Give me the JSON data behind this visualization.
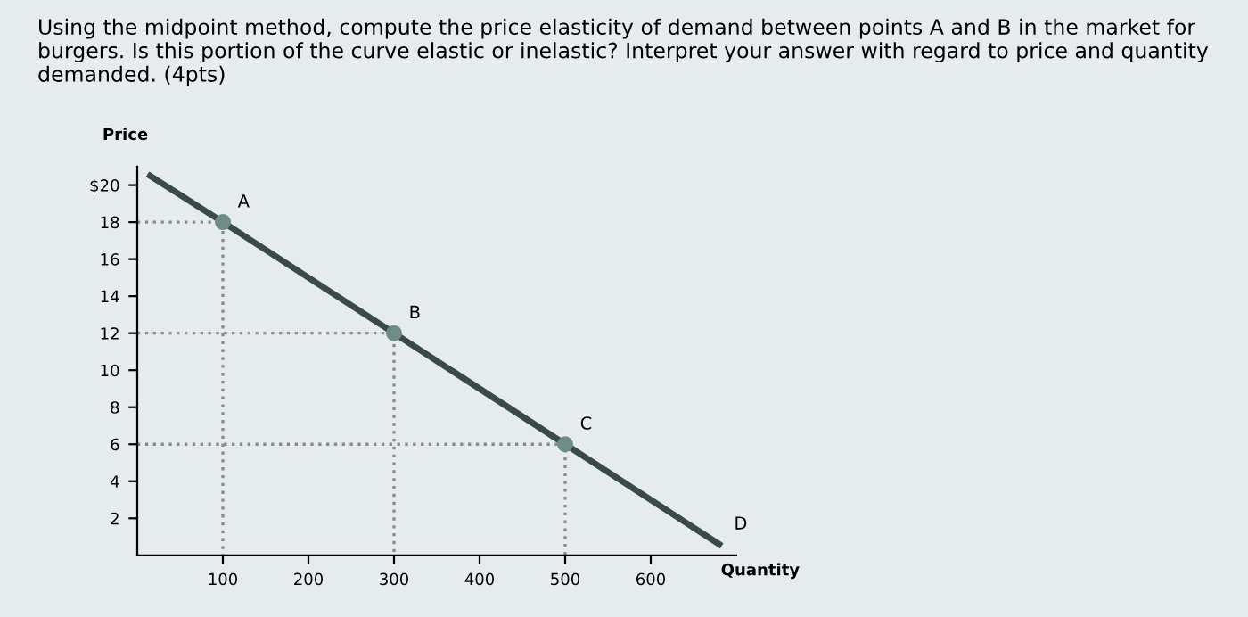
{
  "chart_data": {
    "type": "line",
    "title": "Using the midpoint method, compute the price elasticity of demand between points A and B in the market for burgers. Is this portion of the curve elastic or inelastic? Interpret your answer with regard to price and quantity demanded. (4pts)",
    "xlabel": "Quantity",
    "ylabel": "Price",
    "series": [
      {
        "color": "#3a4a48",
        "x": [
          15,
          100,
          300,
          500,
          680
        ],
        "values": [
          20.5,
          18,
          12,
          6,
          0.6
        ],
        "marker": "none",
        "line_style": "solid"
      },
      {
        "type": "scatter",
        "color": "#6f8c88",
        "x": [
          100,
          300,
          500
        ],
        "values": [
          18,
          12,
          6
        ],
        "marker": "circle"
      },
      {
        "color": "#8a8a8a",
        "x": [
          0,
          100,
          100
        ],
        "values": [
          18,
          18,
          0
        ],
        "marker": "none",
        "line_style": "dotted"
      },
      {
        "color": "#8a8a8a",
        "x": [
          0,
          300,
          300
        ],
        "values": [
          12,
          12,
          0
        ],
        "marker": "none",
        "line_style": "dotted"
      },
      {
        "color": "#8a8a8a",
        "x": [
          0,
          500,
          500
        ],
        "values": [
          6,
          6,
          0
        ],
        "marker": "none",
        "line_style": "dotted"
      }
    ],
    "annotations": [
      {
        "text": "A",
        "x": 100,
        "y": 18
      },
      {
        "text": "B",
        "x": 300,
        "y": 12
      },
      {
        "text": "C",
        "x": 500,
        "y": 6
      },
      {
        "text": "D",
        "x": 680,
        "y": 0.6
      }
    ],
    "xlim": [
      0,
      700
    ],
    "ylim": [
      0,
      21
    ],
    "xticks": [
      100,
      200,
      300,
      400,
      500,
      600
    ],
    "yticks": [
      {
        "value": 2,
        "label": "2"
      },
      {
        "value": 4,
        "label": "4"
      },
      {
        "value": 6,
        "label": "6"
      },
      {
        "value": 8,
        "label": "8"
      },
      {
        "value": 10,
        "label": "10"
      },
      {
        "value": 12,
        "label": "12"
      },
      {
        "value": 14,
        "label": "14"
      },
      {
        "value": 16,
        "label": "16"
      },
      {
        "value": 18,
        "label": "18"
      },
      {
        "value": 20,
        "label": "$20"
      }
    ],
    "grid": false,
    "legend": false
  }
}
